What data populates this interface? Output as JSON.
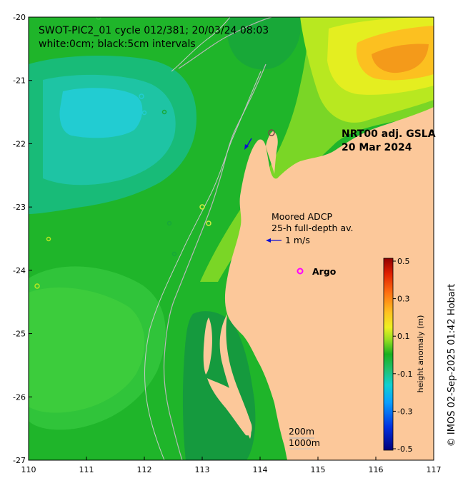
{
  "header": {
    "title": "SWOT-PIC2_01 cycle 012/381; 20/03/24 08:03",
    "subtitle": "white:0cm; black:5cm intervals"
  },
  "product": {
    "name": "NRT00 adj. GSLA",
    "date": "20 Mar 2024"
  },
  "adcp": {
    "line1": "Moored ADCP",
    "line2": "25-h full-depth av.",
    "scale_label": "1 m/s",
    "arrow_color": "#1010d0"
  },
  "argo": {
    "label": "Argo",
    "marker_color": "#ff00ff"
  },
  "isobaths": {
    "shallow": "200m",
    "deep": "1000m"
  },
  "credit": "© IMOS 02-Sep-2025 01:42 Hobart",
  "axes": {
    "x_ticks": [
      "110",
      "111",
      "112",
      "113",
      "114",
      "115",
      "116",
      "117"
    ],
    "y_ticks": [
      "-20",
      "-21",
      "-22",
      "-23",
      "-24",
      "-25",
      "-26",
      "-27"
    ]
  },
  "colorbar": {
    "label": "height anomaly (m)",
    "ticks": [
      "0.5",
      "0.3",
      "0.1",
      "-0.1",
      "-0.3",
      "-0.5"
    ],
    "min": -0.5,
    "max": 0.5
  },
  "colors": {
    "land": "#fcc89a",
    "contour_line": "#aaaaaa"
  }
}
